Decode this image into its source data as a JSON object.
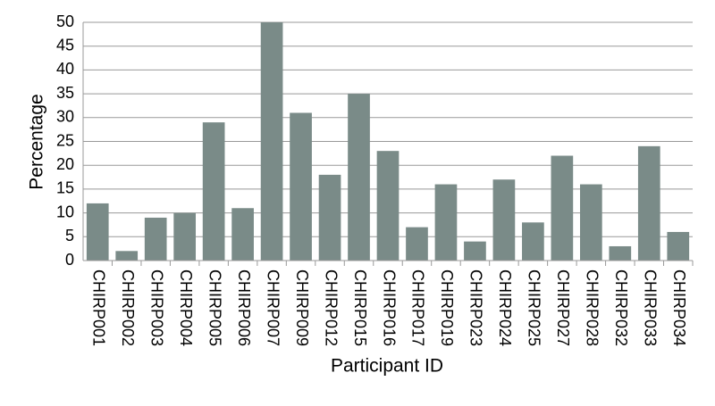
{
  "chart_data": {
    "type": "bar",
    "x_label": "Participant ID",
    "y_label": "Percentage",
    "categories": [
      "CHIRP001",
      "CHIRP002",
      "CHIRP003",
      "CHIRP004",
      "CHIRP005",
      "CHIRP006",
      "CHIRP007",
      "CHIRP009",
      "CHIRP012",
      "CHIRP015",
      "CHIRP016",
      "CHIRP017",
      "CHIRP019",
      "CHIRP023",
      "CHIRP024",
      "CHIRP025",
      "CHIRP027",
      "CHIRP028",
      "CHIRP032",
      "CHIRP033",
      "CHIRP034"
    ],
    "values": [
      12,
      2,
      9,
      10,
      29,
      11,
      50,
      31,
      18,
      35,
      23,
      7,
      16,
      4,
      17,
      8,
      22,
      16,
      3,
      24,
      6
    ],
    "color": "#7a8b88",
    "ylim": [
      0,
      50
    ],
    "yticks": [
      0,
      5,
      10,
      15,
      20,
      25,
      30,
      35,
      40,
      45,
      50
    ],
    "grid": true
  }
}
